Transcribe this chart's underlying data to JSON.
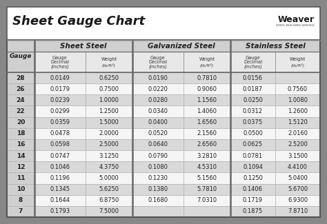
{
  "title": "Sheet Gauge Chart",
  "gauges": [
    "28",
    "26",
    "24",
    "22",
    "20",
    "18",
    "16",
    "14",
    "12",
    "11",
    "10",
    "8",
    "7"
  ],
  "sheet_steel_dec": [
    "0.0149",
    "0.0179",
    "0.0239",
    "0.0299",
    "0.0359",
    "0.0478",
    "0.0598",
    "0.0747",
    "0.1046",
    "0.1196",
    "0.1345",
    "0.1644",
    "0.1793"
  ],
  "sheet_steel_wt": [
    "0.6250",
    "0.7500",
    "1.0000",
    "1.2500",
    "1.5000",
    "2.0000",
    "2.5000",
    "3.1250",
    "4.3750",
    "5.0000",
    "5.6250",
    "6.8750",
    "7.5000"
  ],
  "galv_dec": [
    "0.0190",
    "0.0220",
    "0.0280",
    "0.0340",
    "0.0400",
    "0.0520",
    "0.0640",
    "0.0790",
    "0.1080",
    "0.1230",
    "0.1380",
    "0.1680",
    ""
  ],
  "galv_wt": [
    "0.7810",
    "0.9060",
    "1.1560",
    "1.4060",
    "1.6560",
    "2.1560",
    "2.6560",
    "3.2810",
    "4.5310",
    "5.1560",
    "5.7810",
    "7.0310",
    ""
  ],
  "stain_dec": [
    "0.0156",
    "0.0187",
    "0.0250",
    "0.0312",
    "0.0375",
    "0.0500",
    "0.0625",
    "0.0781",
    "0.1094",
    "0.1250",
    "0.1406",
    "0.1719",
    "0.1875"
  ],
  "stain_wt": [
    "",
    "0.7560",
    "1.0080",
    "1.2600",
    "1.5120",
    "2.0160",
    "2.5200",
    "3.1500",
    "4.4100",
    "5.0400",
    "5.6700",
    "6.9300",
    "7.8710"
  ],
  "outer_bg": "#878787",
  "inner_bg": "#ffffff",
  "row_gray": "#d9d9d9",
  "row_white": "#f5f5f5",
  "gauge_col_bg": "#d0d0d0",
  "header_group_bg": "#d0d0d0",
  "header_sub_bg": "#e8e8e8",
  "divider_color": "#888888",
  "cell_border": "#b0b0b0",
  "title_font_size": 13,
  "header_group_font_size": 7.5,
  "header_sub_font_size": 4.8,
  "data_font_size": 6.0,
  "gauge_font_size": 6.5
}
